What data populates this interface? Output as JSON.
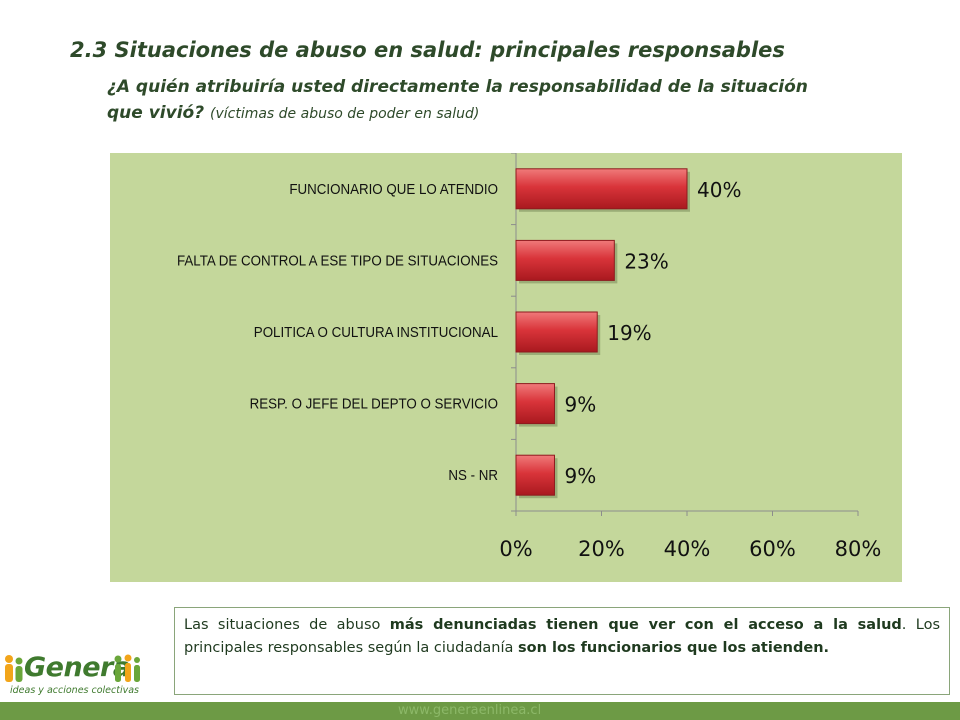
{
  "header": {
    "title": "2.3 Situaciones de abuso en salud: principales responsables",
    "question": "¿A quién atribuiría usted directamente la responsabilidad de la situación que vivió?",
    "question_note": "(víctimas de abuso de poder en salud)"
  },
  "chart_data": {
    "type": "bar",
    "orientation": "horizontal",
    "categories": [
      "FUNCIONARIO QUE LO ATENDIO",
      "FALTA DE CONTROL A ESE TIPO DE SITUACIONES",
      "POLITICA O CULTURA INSTITUCIONAL",
      "RESP. O JEFE DEL DEPTO O SERVICIO",
      "NS - NR"
    ],
    "values": [
      40,
      23,
      19,
      9,
      9
    ],
    "data_labels": [
      "40%",
      "23%",
      "19%",
      "9%",
      "9%"
    ],
    "x_ticks": [
      "0%",
      "20%",
      "40%",
      "60%",
      "80%"
    ],
    "xlim": [
      0,
      80
    ],
    "bar_color": "#d9343a",
    "background_color": "#c4d79b",
    "grid": false
  },
  "note": {
    "line1_a": "Las situaciones de abuso ",
    "line1_b": "más denunciadas tienen que ver con el acceso a la salud",
    "line1_c": ".",
    "line2_a": "Los principales responsables según la ciudadanía ",
    "line2_b": "son los funcionarios que los atienden."
  },
  "logo": {
    "name": "Genera",
    "tagline": "ideas y acciones colectivas"
  },
  "footer": {
    "url": "www.generaenlinea.cl"
  }
}
